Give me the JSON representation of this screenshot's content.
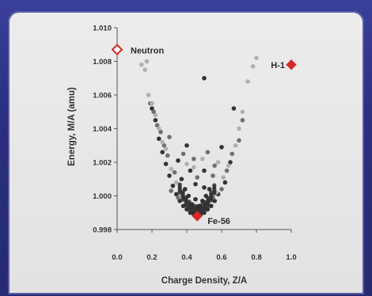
{
  "chart_data": {
    "type": "scatter",
    "xlabel": "Charge Density, Z/A",
    "ylabel": "Energy, M/A (amu)",
    "xlim": [
      0.0,
      1.0
    ],
    "ylim": [
      0.998,
      1.01
    ],
    "x_ticks": [
      "0.0",
      "0.2",
      "0.4",
      "0.6",
      "0.8",
      "1.0"
    ],
    "x_tick_values": [
      0.0,
      0.2,
      0.4,
      0.6,
      0.8,
      1.0
    ],
    "y_ticks": [
      "1.010",
      "1.008",
      "1.006",
      "1.004",
      "1.002",
      "1.000",
      "0.998"
    ],
    "y_tick_values": [
      1.01,
      1.008,
      1.006,
      1.004,
      1.002,
      1.0,
      0.998
    ],
    "grid": false,
    "colors": {
      "highlight": "#d42a2a",
      "dark": "#333333",
      "mid": "#6f6f6f",
      "light": "#b0b0b0"
    },
    "series": [
      {
        "color": "dark",
        "points": [
          [
            0.46,
            0.9988
          ],
          [
            0.48,
            0.9989
          ],
          [
            0.44,
            0.9989
          ],
          [
            0.42,
            0.999
          ],
          [
            0.5,
            0.999
          ],
          [
            0.4,
            0.9992
          ],
          [
            0.52,
            0.9992
          ],
          [
            0.38,
            0.9994
          ],
          [
            0.54,
            0.9994
          ],
          [
            0.43,
            0.9995
          ],
          [
            0.47,
            0.9994
          ],
          [
            0.36,
            0.9997
          ],
          [
            0.45,
            0.9998
          ],
          [
            0.49,
            0.9997
          ],
          [
            0.56,
            0.9997
          ],
          [
            0.34,
            1.0001
          ],
          [
            0.41,
            1.0
          ],
          [
            0.51,
            1.0
          ],
          [
            0.58,
            1.0001
          ],
          [
            0.39,
            1.0004
          ],
          [
            0.32,
            1.0006
          ],
          [
            0.5,
            1.0005
          ],
          [
            0.53,
            1.0004
          ],
          [
            0.3,
            1.0012
          ],
          [
            0.62,
            1.0008
          ],
          [
            0.37,
            1.001
          ],
          [
            0.45,
            1.0007
          ],
          [
            0.28,
            1.0019
          ],
          [
            0.42,
            1.0015
          ],
          [
            0.5,
            1.0015
          ],
          [
            0.26,
            1.0026
          ],
          [
            0.65,
            1.002
          ],
          [
            0.35,
            1.0021
          ],
          [
            0.24,
            1.0034
          ],
          [
            0.6,
            1.0029
          ],
          [
            0.22,
            1.0045
          ],
          [
            0.2,
            1.0052
          ],
          [
            0.67,
            1.0052
          ],
          [
            0.5,
            1.007
          ],
          [
            0.4,
            1.003
          ]
        ]
      },
      {
        "color": "mid",
        "points": [
          [
            0.35,
            0.9999
          ],
          [
            0.55,
            0.9999
          ],
          [
            0.31,
            1.0003
          ],
          [
            0.6,
            1.0004
          ],
          [
            0.33,
            1.0014
          ],
          [
            0.46,
            1.0011
          ],
          [
            0.55,
            1.0012
          ],
          [
            0.29,
            1.0024
          ],
          [
            0.63,
            1.0015
          ],
          [
            0.38,
            1.0025
          ],
          [
            0.27,
            1.003
          ],
          [
            0.66,
            1.0025
          ],
          [
            0.25,
            1.0038
          ],
          [
            0.56,
            1.0018
          ],
          [
            0.23,
            1.0042
          ],
          [
            0.21,
            1.005
          ],
          [
            0.72,
            1.0045
          ],
          [
            0.19,
            1.0055
          ],
          [
            0.3,
            1.0035
          ],
          [
            0.7,
            1.0033
          ],
          [
            0.44,
            1.0022
          ],
          [
            0.52,
            1.0026
          ]
        ]
      },
      {
        "color": "light",
        "points": [
          [
            0.37,
            1.0
          ],
          [
            0.57,
            1.0002
          ],
          [
            0.34,
            1.0008
          ],
          [
            0.61,
            1.0011
          ],
          [
            0.31,
            1.0016
          ],
          [
            0.44,
            1.0017
          ],
          [
            0.49,
            1.0022
          ],
          [
            0.64,
            1.0018
          ],
          [
            0.28,
            1.0028
          ],
          [
            0.68,
            1.003
          ],
          [
            0.26,
            1.0032
          ],
          [
            0.7,
            1.004
          ],
          [
            0.24,
            1.004
          ],
          [
            0.72,
            1.005
          ],
          [
            0.22,
            1.0048
          ],
          [
            0.2,
            1.0055
          ],
          [
            0.75,
            1.0068
          ],
          [
            0.18,
            1.006
          ],
          [
            0.16,
            1.0075
          ],
          [
            0.78,
            1.0077
          ],
          [
            0.14,
            1.0078
          ],
          [
            0.8,
            1.0082
          ],
          [
            0.17,
            1.008
          ],
          [
            0.4,
            1.0019
          ],
          [
            0.58,
            1.002
          ]
        ]
      }
    ],
    "highlighted": [
      {
        "label": "Neutron",
        "x": 0.0,
        "y": 1.0087,
        "style": "hollow-diamond"
      },
      {
        "label": "H-1",
        "x": 1.0,
        "y": 1.0078,
        "style": "filled-diamond"
      },
      {
        "label": "Fe-56",
        "x": 0.46,
        "y": 0.9988,
        "style": "filled-diamond"
      }
    ]
  }
}
